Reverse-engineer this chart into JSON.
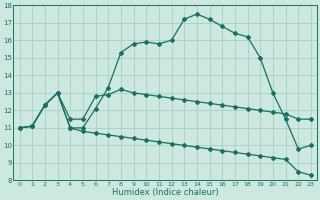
{
  "xlabel": "Humidex (Indice chaleur)",
  "xlim": [
    -0.5,
    23.5
  ],
  "ylim": [
    8,
    18
  ],
  "xticks": [
    0,
    1,
    2,
    3,
    4,
    5,
    6,
    7,
    8,
    9,
    10,
    11,
    12,
    13,
    14,
    15,
    16,
    17,
    18,
    19,
    20,
    21,
    22,
    23
  ],
  "yticks": [
    8,
    9,
    10,
    11,
    12,
    13,
    14,
    15,
    16,
    17,
    18
  ],
  "bg_color": "#cce8e0",
  "line_color": "#1a7060",
  "grid_color": "#a0ccc0",
  "curve1_x": [
    0,
    1,
    2,
    3,
    4,
    5,
    6,
    7,
    8,
    9,
    10,
    11,
    12,
    13,
    14,
    15,
    16,
    17,
    18,
    19,
    20,
    21,
    22,
    23
  ],
  "curve1_y": [
    11.0,
    11.1,
    12.3,
    13.0,
    11.0,
    11.0,
    12.1,
    13.3,
    15.3,
    15.8,
    15.9,
    15.8,
    16.0,
    17.2,
    17.5,
    17.2,
    16.8,
    16.4,
    16.2,
    15.0,
    13.0,
    11.5,
    9.8,
    10.0
  ],
  "curve2_x": [
    0,
    1,
    2,
    3,
    4,
    5,
    6,
    7,
    8,
    9,
    10,
    11,
    12,
    13,
    14,
    15,
    16,
    17,
    18,
    19,
    20,
    21,
    22,
    23
  ],
  "curve2_y": [
    11.0,
    11.1,
    12.3,
    13.0,
    11.5,
    11.5,
    12.8,
    12.9,
    13.2,
    13.0,
    12.9,
    12.8,
    12.7,
    12.6,
    12.5,
    12.4,
    12.3,
    12.2,
    12.1,
    12.0,
    11.9,
    11.8,
    11.5,
    11.5
  ],
  "curve3_x": [
    0,
    1,
    2,
    3,
    4,
    5,
    6,
    7,
    8,
    9,
    10,
    11,
    12,
    13,
    14,
    15,
    16,
    17,
    18,
    19,
    20,
    21,
    22,
    23
  ],
  "curve3_y": [
    11.0,
    11.1,
    12.3,
    13.0,
    11.0,
    10.8,
    10.7,
    10.6,
    10.5,
    10.4,
    10.3,
    10.2,
    10.1,
    10.0,
    9.9,
    9.8,
    9.7,
    9.6,
    9.5,
    9.4,
    9.3,
    9.2,
    8.5,
    8.3
  ],
  "marker": "D",
  "marker_size": 2.0,
  "linewidth": 0.9
}
